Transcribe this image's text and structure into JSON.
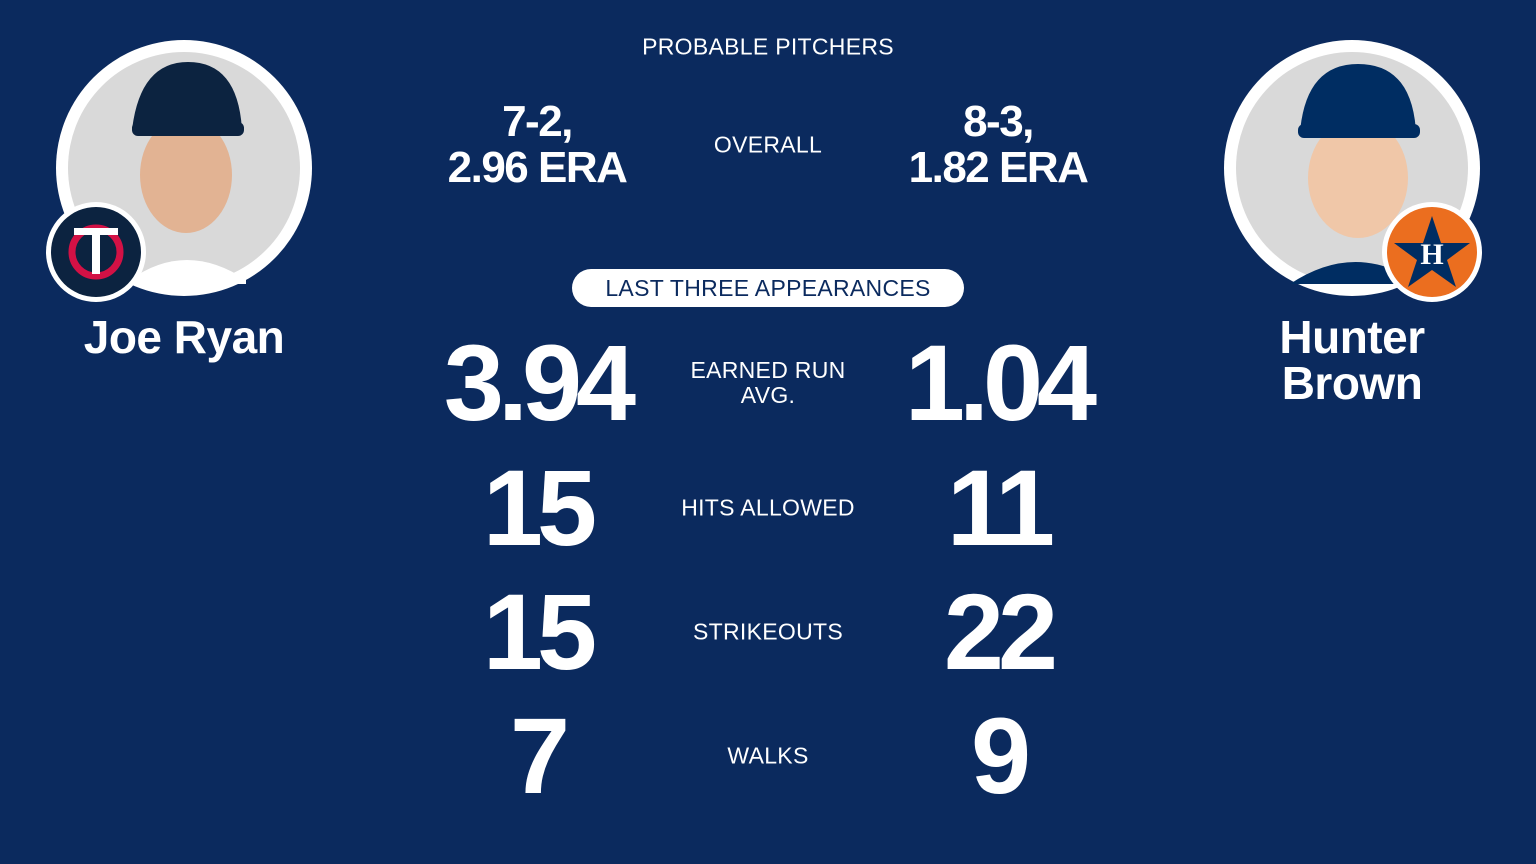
{
  "header": {
    "title": "PROBABLE PITCHERS",
    "section": "LAST THREE APPEARANCES",
    "overall_label": "OVERALL"
  },
  "pitchers": [
    {
      "name": [
        "Joe Ryan"
      ],
      "overall": [
        "7-2,",
        "2.96 ERA"
      ]
    },
    {
      "name": [
        "Hunter",
        "Brown"
      ],
      "overall": [
        "8-3,",
        "1.82 ERA"
      ]
    }
  ],
  "stats": [
    {
      "label": [
        "EARNED RUN",
        "AVG."
      ],
      "values": [
        "3.94",
        "1.04"
      ]
    },
    {
      "label": [
        "HITS ALLOWED"
      ],
      "values": [
        "15",
        "11"
      ]
    },
    {
      "label": [
        "STRIKEOUTS"
      ],
      "values": [
        "15",
        "22"
      ]
    },
    {
      "label": [
        "WALKS"
      ],
      "values": [
        "7",
        "9"
      ]
    }
  ]
}
